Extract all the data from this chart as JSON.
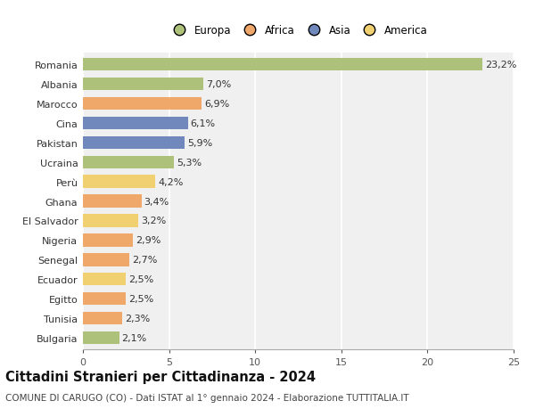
{
  "categories": [
    "Romania",
    "Albania",
    "Marocco",
    "Cina",
    "Pakistan",
    "Ucraina",
    "Perù",
    "Ghana",
    "El Salvador",
    "Nigeria",
    "Senegal",
    "Ecuador",
    "Egitto",
    "Tunisia",
    "Bulgaria"
  ],
  "values": [
    23.2,
    7.0,
    6.9,
    6.1,
    5.9,
    5.3,
    4.2,
    3.4,
    3.2,
    2.9,
    2.7,
    2.5,
    2.5,
    2.3,
    2.1
  ],
  "colors": [
    "#adc17a",
    "#adc17a",
    "#f0a86a",
    "#7088bb",
    "#7088bb",
    "#adc17a",
    "#f0d070",
    "#f0a86a",
    "#f0d070",
    "#f0a86a",
    "#f0a86a",
    "#f0d070",
    "#f0a86a",
    "#f0a86a",
    "#adc17a"
  ],
  "legend_labels": [
    "Europa",
    "Africa",
    "Asia",
    "America"
  ],
  "legend_colors": [
    "#adc17a",
    "#f0a86a",
    "#7088bb",
    "#f0d070"
  ],
  "xlim": [
    0,
    25
  ],
  "xticks": [
    0,
    5,
    10,
    15,
    20,
    25
  ],
  "title": "Cittadini Stranieri per Cittadinanza - 2024",
  "subtitle": "COMUNE DI CARUGO (CO) - Dati ISTAT al 1° gennaio 2024 - Elaborazione TUTTITALIA.IT",
  "bg_color": "#ffffff",
  "plot_bg_color": "#f0f0f0",
  "grid_color": "#ffffff",
  "bar_height": 0.65,
  "title_fontsize": 10.5,
  "subtitle_fontsize": 7.5,
  "tick_fontsize": 8,
  "label_fontsize": 8,
  "legend_fontsize": 8.5
}
